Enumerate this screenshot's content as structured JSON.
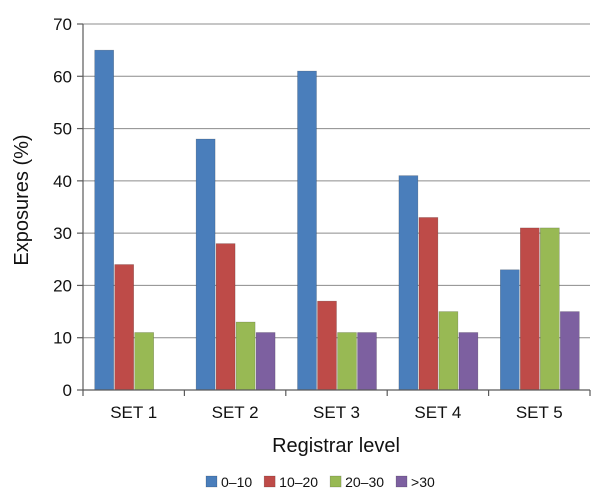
{
  "chart_data": {
    "type": "bar",
    "title": "",
    "xlabel": "Registrar level",
    "ylabel": "Exposures (%)",
    "ylim": [
      0,
      70
    ],
    "y_ticks": [
      0,
      10,
      20,
      30,
      40,
      50,
      60,
      70
    ],
    "grid": true,
    "legend_position": "bottom",
    "categories": [
      "SET 1",
      "SET 2",
      "SET 3",
      "SET 4",
      "SET 5"
    ],
    "series": [
      {
        "name": "0–10",
        "color": "#4a7ebb",
        "values": [
          65,
          48,
          61,
          41,
          23
        ]
      },
      {
        "name": "10–20",
        "color": "#be4b48",
        "values": [
          24,
          28,
          17,
          33,
          31
        ]
      },
      {
        "name": "20–30",
        "color": "#98b954",
        "values": [
          11,
          13,
          11,
          15,
          31
        ]
      },
      {
        "name": ">30",
        "color": "#7d60a0",
        "values": [
          0,
          11,
          11,
          11,
          15
        ]
      }
    ]
  }
}
